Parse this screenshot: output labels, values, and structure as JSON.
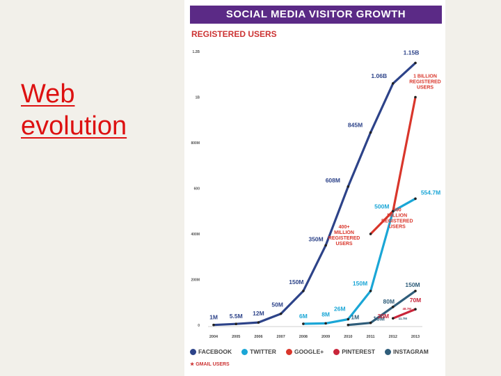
{
  "slide": {
    "title_line1": "Web",
    "title_line2": "evolution"
  },
  "infographic": {
    "banner": "SOCIAL MEDIA VISITOR GROWTH",
    "section": "REGISTERED USERS",
    "gmail_note": "★ GMAIL USERS"
  },
  "legend": [
    {
      "label": "FACEBOOK",
      "color": "#2d4389"
    },
    {
      "label": "TWITTER",
      "color": "#1aa6d6"
    },
    {
      "label": "GOOGLE+",
      "color": "#d9362b"
    },
    {
      "label": "PINTEREST",
      "color": "#c9253a"
    },
    {
      "label": "INSTAGRAM",
      "color": "#2f5d7a"
    }
  ],
  "chart_data": {
    "type": "line",
    "title": "SOCIAL MEDIA VISITOR GROWTH",
    "subtitle": "REGISTERED USERS",
    "x": [
      2004,
      2005,
      2006,
      2007,
      2008,
      2009,
      2010,
      2011,
      2012,
      2013
    ],
    "x_tick_labels": [
      "2004",
      "2005",
      "2006",
      "2007",
      "2008",
      "2009",
      "2010",
      "2011",
      "2012",
      "2013"
    ],
    "y_ticks": [
      0,
      200,
      400,
      600,
      800,
      1000,
      1200
    ],
    "y_tick_labels": [
      "0",
      "200M",
      "400M",
      "600",
      "800M",
      "1B",
      "1.2B"
    ],
    "ylim": [
      0,
      1200
    ],
    "grid": false,
    "legend_position": "bottom",
    "series": [
      {
        "name": "FACEBOOK",
        "color": "#2d4389",
        "points": [
          [
            2004,
            1
          ],
          [
            2005,
            5.5
          ],
          [
            2006,
            12
          ],
          [
            2007,
            50
          ],
          [
            2008,
            150
          ],
          [
            2009,
            350
          ],
          [
            2010,
            608
          ],
          [
            2011,
            845
          ],
          [
            2012,
            1060
          ],
          [
            2013,
            1150
          ]
        ],
        "labels": [
          "1M",
          "5.5M",
          "12M",
          "50M",
          "150M",
          "350M",
          "608M",
          "845M",
          "1.06B",
          "1.15B"
        ]
      },
      {
        "name": "TWITTER",
        "color": "#1aa6d6",
        "points": [
          [
            2008,
            6
          ],
          [
            2009,
            8
          ],
          [
            2010,
            26
          ],
          [
            2011,
            150
          ],
          [
            2012,
            500
          ],
          [
            2013,
            554.7
          ]
        ],
        "labels": [
          "6M",
          "8M",
          "26M",
          "150M",
          "500M",
          "554.7M"
        ]
      },
      {
        "name": "GOOGLE+",
        "color": "#d9362b",
        "points": [
          [
            2011,
            400
          ],
          [
            2012,
            500
          ]
        ],
        "labels": [
          "400+ MILLION REGISTERED USERS",
          "500 MILLION REGISTERED USERS"
        ]
      },
      {
        "name": "GMAIL USERS",
        "color": "#d9362b",
        "points": [
          [
            2012,
            500
          ],
          [
            2013,
            1000
          ]
        ],
        "labels": [
          "",
          "1 BILLION REGISTERED USERS"
        ]
      },
      {
        "name": "INSTAGRAM",
        "color": "#2f5d7a",
        "points": [
          [
            2010,
            1
          ],
          [
            2011,
            10
          ],
          [
            2012,
            80
          ],
          [
            2013,
            150
          ]
        ],
        "labels": [
          "1M",
          "10M",
          "80M",
          "150M"
        ]
      },
      {
        "name": "PINTEREST",
        "color": "#c9253a",
        "points": [
          [
            2012,
            30
          ],
          [
            2013,
            70
          ]
        ],
        "labels": [
          "30M",
          "70M"
        ]
      }
    ],
    "annotations": [
      "48.7M",
      "11.7M"
    ]
  }
}
